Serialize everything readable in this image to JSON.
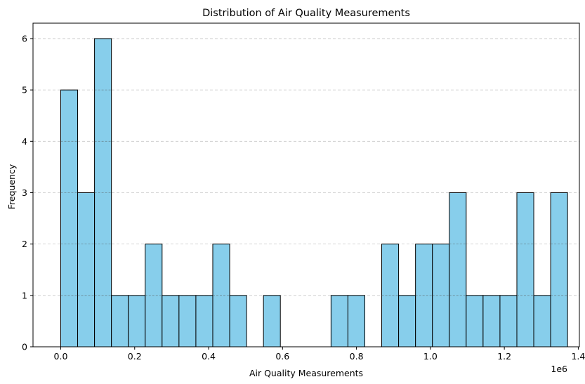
{
  "chart_data": {
    "type": "bar",
    "title": "Distribution of Air Quality Measurements",
    "xlabel": "Air Quality Measurements",
    "ylabel": "Frequency",
    "x_offset_label": "1e6",
    "x_scale": 1000000,
    "bins": 30,
    "bin_start": 0,
    "bin_width": 45700,
    "values": [
      5,
      3,
      6,
      1,
      1,
      2,
      1,
      1,
      1,
      2,
      1,
      0,
      1,
      0,
      0,
      0,
      1,
      1,
      0,
      2,
      1,
      2,
      2,
      3,
      1,
      1,
      1,
      3,
      1,
      3
    ],
    "xlim": [
      -75000,
      1403000
    ],
    "ylim": [
      0,
      6.3
    ],
    "x_ticks": [
      0,
      200000,
      400000,
      600000,
      800000,
      1000000,
      1200000,
      1400000
    ],
    "x_tick_labels": [
      "0.0",
      "0.2",
      "0.4",
      "0.6",
      "0.8",
      "1.0",
      "1.2",
      "1.4"
    ],
    "y_ticks": [
      0,
      1,
      2,
      3,
      4,
      5,
      6
    ],
    "y_tick_labels": [
      "0",
      "1",
      "2",
      "3",
      "4",
      "5",
      "6"
    ],
    "grid": {
      "axis": "y",
      "style": "dashed"
    },
    "bar_color": "#87ceeb",
    "edge_color": "#000000"
  }
}
